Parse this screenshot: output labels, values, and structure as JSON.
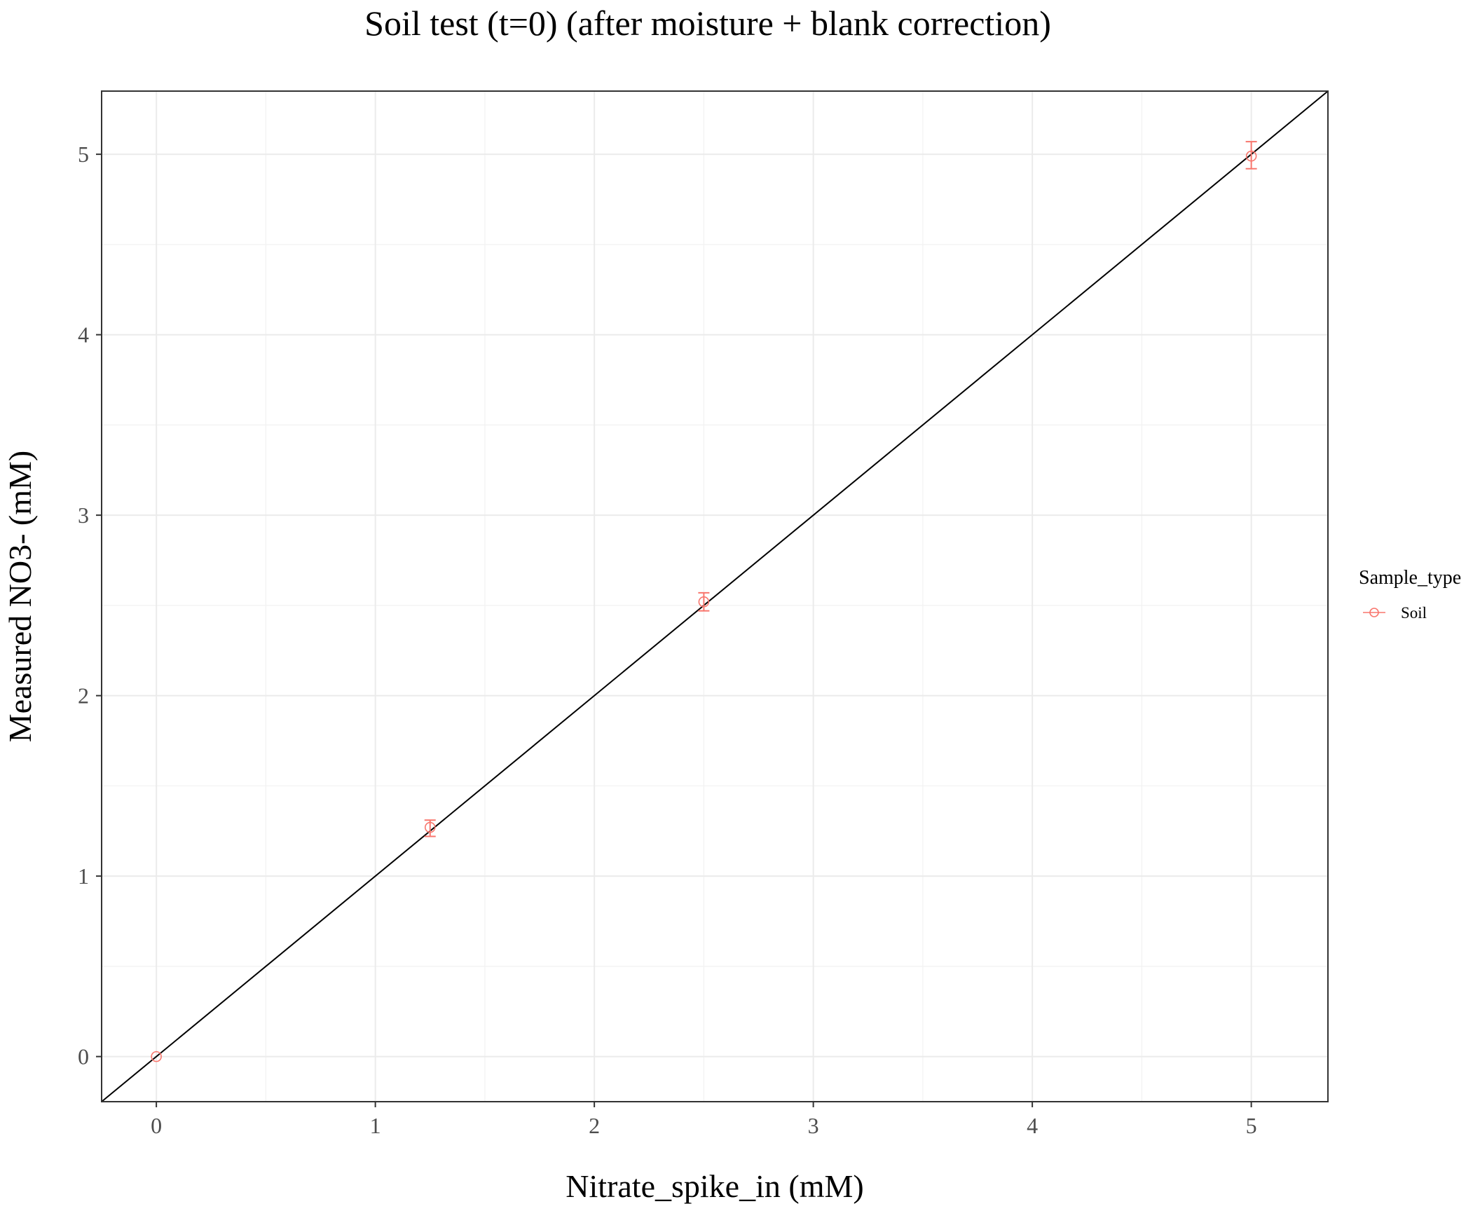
{
  "chart_data": {
    "type": "scatter",
    "title": "Soil test (t=0) (after moisture + blank correction)",
    "xlabel": "Nitrate_spike_in (mM)",
    "ylabel": "Measured NO3- (mM)",
    "xlim": [
      -0.25,
      5.35
    ],
    "ylim": [
      -0.25,
      5.35
    ],
    "x_ticks": [
      0,
      1,
      2,
      3,
      4,
      5
    ],
    "y_ticks": [
      0,
      1,
      2,
      3,
      4,
      5
    ],
    "x_tick_labels": [
      "0",
      "1",
      "2",
      "3",
      "4",
      "5"
    ],
    "y_tick_labels": [
      "0",
      "1",
      "2",
      "3",
      "4",
      "5"
    ],
    "grid": true,
    "reference_line": {
      "slope": 1,
      "intercept": 0,
      "color": "#000000"
    },
    "legend": {
      "title": "Sample_type",
      "position": "right"
    },
    "series": [
      {
        "name": "Soil",
        "color": "#F8766D",
        "marker": "open-circle",
        "points": [
          {
            "x": 0,
            "y": 0,
            "ymin": 0,
            "ymax": 0
          },
          {
            "x": 1.25,
            "y": 1.27,
            "ymin": 1.22,
            "ymax": 1.31
          },
          {
            "x": 2.5,
            "y": 2.52,
            "ymin": 2.47,
            "ymax": 2.57
          },
          {
            "x": 5,
            "y": 4.99,
            "ymin": 4.92,
            "ymax": 5.07
          }
        ]
      }
    ]
  }
}
